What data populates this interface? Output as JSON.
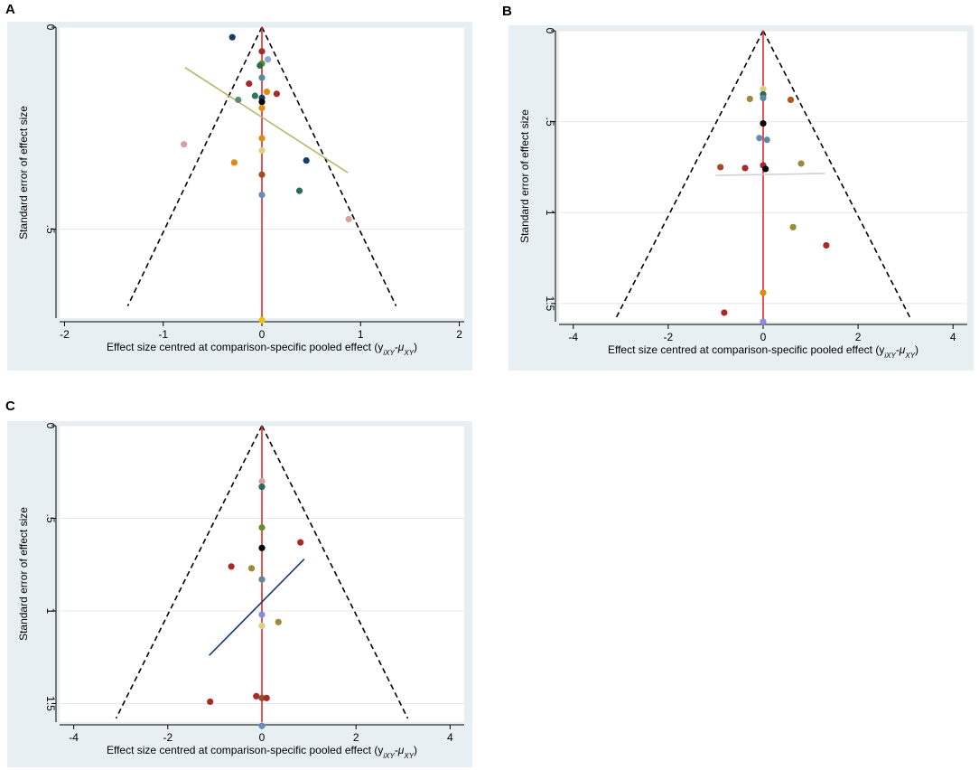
{
  "figure": {
    "panel_labels": [
      "A",
      "B",
      "C"
    ]
  },
  "colors": {
    "outer_bg": "#e8eff3",
    "plot_bg": "#ffffff",
    "grid": "#e4e8ec",
    "axis": "#000000",
    "null_line": "#e02a2a",
    "funnel": "#000000"
  },
  "chart_data": [
    {
      "panel": "A",
      "type": "scatter",
      "xlabel": "Effect size centred at comparison-specific pooled effect (y",
      "xlabel_sub": "iXY",
      "xlabel_minus": "-μ",
      "xlabel_sub2": "XY",
      "xlabel_close": ")",
      "ylabel": "Standard error of effect size",
      "xlim": [
        -2.05,
        2.05
      ],
      "ylim": [
        0,
        0.72
      ],
      "x_ticks": [
        -2,
        -1,
        0,
        1,
        2
      ],
      "x_tick_labels": [
        "-2",
        "-1",
        "0",
        "1",
        "2"
      ],
      "y_ticks": [
        0,
        0.5
      ],
      "y_tick_labels": [
        "0",
        ".5"
      ],
      "funnel": {
        "apex": [
          0,
          0
        ],
        "base_y": 0.69,
        "half_width": 1.36
      },
      "regression_line": {
        "x": [
          -0.78,
          0.87
        ],
        "y": [
          0.1,
          0.36
        ],
        "color": "#b8b86a"
      },
      "points": [
        {
          "x": -0.3,
          "y": 0.025,
          "color": "#1a3b6b"
        },
        {
          "x": 0.0,
          "y": 0.06,
          "color": "#a62a2a"
        },
        {
          "x": 0.06,
          "y": 0.08,
          "color": "#8aa8d0"
        },
        {
          "x": 0.0,
          "y": 0.09,
          "color": "#6b8a2a"
        },
        {
          "x": -0.02,
          "y": 0.095,
          "color": "#2a6a4a"
        },
        {
          "x": 0.0,
          "y": 0.125,
          "color": "#5a8aa0"
        },
        {
          "x": -0.13,
          "y": 0.14,
          "color": "#a62a2a"
        },
        {
          "x": -0.07,
          "y": 0.17,
          "color": "#2a7a5a"
        },
        {
          "x": 0.05,
          "y": 0.16,
          "color": "#e08a10"
        },
        {
          "x": 0.15,
          "y": 0.165,
          "color": "#a62a2a"
        },
        {
          "x": 0.0,
          "y": 0.175,
          "color": "#1a3b6b"
        },
        {
          "x": 0.0,
          "y": 0.185,
          "color": "#000000"
        },
        {
          "x": -0.24,
          "y": 0.18,
          "color": "#5a8a7a"
        },
        {
          "x": 0.0,
          "y": 0.2,
          "color": "#e08a10"
        },
        {
          "x": 0.0,
          "y": 0.275,
          "color": "#e08a10"
        },
        {
          "x": -0.79,
          "y": 0.29,
          "color": "#d8a0a0"
        },
        {
          "x": 0.0,
          "y": 0.305,
          "color": "#d8d080"
        },
        {
          "x": -0.28,
          "y": 0.335,
          "color": "#e08a10"
        },
        {
          "x": 0.45,
          "y": 0.33,
          "color": "#1a3b6b"
        },
        {
          "x": 0.0,
          "y": 0.365,
          "color": "#a04a2a"
        },
        {
          "x": 0.38,
          "y": 0.405,
          "color": "#2a6a5a"
        },
        {
          "x": 0.0,
          "y": 0.415,
          "color": "#6a8ab8"
        },
        {
          "x": 0.88,
          "y": 0.475,
          "color": "#d8a0a0"
        },
        {
          "x": 0.0,
          "y": 0.725,
          "color": "#f0c000"
        }
      ]
    },
    {
      "panel": "B",
      "type": "scatter",
      "xlabel": "Effect size centred at comparison-specific pooled effect (y",
      "xlabel_sub": "iXY",
      "xlabel_minus": "-μ",
      "xlabel_sub2": "XY",
      "xlabel_close": ")",
      "ylabel": "Standard error of effect size",
      "xlim": [
        -4.3,
        4.3
      ],
      "ylim": [
        0,
        1.6
      ],
      "x_ticks": [
        -4,
        -2,
        0,
        2,
        4
      ],
      "x_tick_labels": [
        "-4",
        "-2",
        "0",
        "2",
        "4"
      ],
      "y_ticks": [
        0,
        0.5,
        1,
        1.5
      ],
      "y_tick_labels": [
        "0",
        ".5",
        "1",
        "1.5"
      ],
      "funnel": {
        "apex": [
          0,
          0
        ],
        "base_y": 1.59,
        "half_width": 3.12
      },
      "regression_line": {
        "x": [
          -1.0,
          1.3
        ],
        "y": [
          0.795,
          0.785
        ],
        "color": "#c8d0d8"
      },
      "points": [
        {
          "x": 0.0,
          "y": 0.32,
          "color": "#d8d080"
        },
        {
          "x": 0.0,
          "y": 0.35,
          "color": "#2a6a5a"
        },
        {
          "x": 0.0,
          "y": 0.37,
          "color": "#5a8aa0"
        },
        {
          "x": -0.28,
          "y": 0.375,
          "color": "#9a8a3a"
        },
        {
          "x": 0.58,
          "y": 0.38,
          "color": "#b0561a"
        },
        {
          "x": 0.0,
          "y": 0.51,
          "color": "#000000"
        },
        {
          "x": -0.08,
          "y": 0.59,
          "color": "#6a8ab8"
        },
        {
          "x": 0.08,
          "y": 0.6,
          "color": "#5a8aa0"
        },
        {
          "x": -0.9,
          "y": 0.75,
          "color": "#a04a2a"
        },
        {
          "x": -0.38,
          "y": 0.755,
          "color": "#a62a2a"
        },
        {
          "x": 0.0,
          "y": 0.74,
          "color": "#a62a2a"
        },
        {
          "x": 0.05,
          "y": 0.76,
          "color": "#000000"
        },
        {
          "x": 0.8,
          "y": 0.73,
          "color": "#9a8a3a"
        },
        {
          "x": 0.63,
          "y": 1.08,
          "color": "#9a8a3a"
        },
        {
          "x": 1.33,
          "y": 1.18,
          "color": "#a62a2a"
        },
        {
          "x": 0.0,
          "y": 1.44,
          "color": "#e08a10"
        },
        {
          "x": -0.82,
          "y": 1.55,
          "color": "#a62a2a"
        },
        {
          "x": 0.0,
          "y": 1.6,
          "color": "#8a8ae0"
        }
      ]
    },
    {
      "panel": "C",
      "type": "scatter",
      "xlabel": "Effect size centred at comparison-specific pooled effect (y",
      "xlabel_sub": "iXY",
      "xlabel_minus": "-μ",
      "xlabel_sub2": "XY",
      "xlabel_close": ")",
      "ylabel": "Standard error of effect size",
      "xlim": [
        -4.3,
        4.3
      ],
      "ylim": [
        0,
        1.6
      ],
      "x_ticks": [
        -4,
        -2,
        0,
        2,
        4
      ],
      "x_tick_labels": [
        "-4",
        "-2",
        "0",
        "2",
        "4"
      ],
      "y_ticks": [
        0,
        0.5,
        1,
        1.5
      ],
      "y_tick_labels": [
        "0",
        ".5",
        "1",
        "1.5"
      ],
      "funnel": {
        "apex": [
          0,
          0
        ],
        "base_y": 1.58,
        "half_width": 3.1
      },
      "regression_line": {
        "x": [
          -1.12,
          0.9
        ],
        "y": [
          1.24,
          0.72
        ],
        "color": "#1a3b6b"
      },
      "points": [
        {
          "x": 0.0,
          "y": 0.3,
          "color": "#d8a0a0"
        },
        {
          "x": 0.0,
          "y": 0.33,
          "color": "#2a6a5a"
        },
        {
          "x": 0.0,
          "y": 0.55,
          "color": "#6b8a2a"
        },
        {
          "x": 0.82,
          "y": 0.63,
          "color": "#a62a2a"
        },
        {
          "x": 0.0,
          "y": 0.66,
          "color": "#000000"
        },
        {
          "x": -0.65,
          "y": 0.76,
          "color": "#a62a2a"
        },
        {
          "x": -0.22,
          "y": 0.77,
          "color": "#9a8a3a"
        },
        {
          "x": 0.0,
          "y": 0.83,
          "color": "#5a8aa0"
        },
        {
          "x": 0.0,
          "y": 1.02,
          "color": "#8a8ae0"
        },
        {
          "x": 0.35,
          "y": 1.06,
          "color": "#9a8a3a"
        },
        {
          "x": 0.0,
          "y": 1.08,
          "color": "#d8d080"
        },
        {
          "x": -0.12,
          "y": 1.46,
          "color": "#a62a2a"
        },
        {
          "x": 0.0,
          "y": 1.47,
          "color": "#a04a2a"
        },
        {
          "x": 0.1,
          "y": 1.47,
          "color": "#a62a2a"
        },
        {
          "x": -1.1,
          "y": 1.49,
          "color": "#a62a2a"
        },
        {
          "x": 0.0,
          "y": 1.62,
          "color": "#6a8ab8"
        }
      ]
    }
  ]
}
